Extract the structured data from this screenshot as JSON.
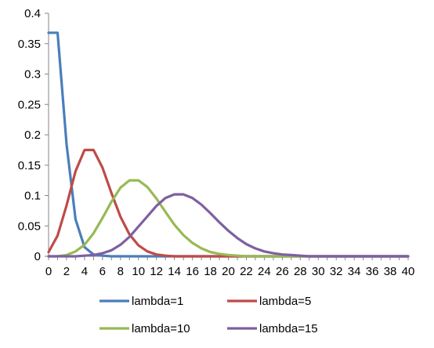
{
  "chart_data": {
    "type": "line",
    "title": "",
    "xlabel": "",
    "ylabel": "",
    "x": [
      0,
      1,
      2,
      3,
      4,
      5,
      6,
      7,
      8,
      9,
      10,
      11,
      12,
      13,
      14,
      15,
      16,
      17,
      18,
      19,
      20,
      21,
      22,
      23,
      24,
      25,
      26,
      27,
      28,
      29,
      30,
      31,
      32,
      33,
      34,
      35,
      36,
      37,
      38,
      39,
      40
    ],
    "x_tick_labels": [
      "0",
      "2",
      "4",
      "6",
      "8",
      "10",
      "12",
      "14",
      "16",
      "18",
      "20",
      "22",
      "24",
      "26",
      "28",
      "30",
      "32",
      "34",
      "36",
      "38",
      "40"
    ],
    "x_tick_values": [
      0,
      2,
      4,
      6,
      8,
      10,
      12,
      14,
      16,
      18,
      20,
      22,
      24,
      26,
      28,
      30,
      32,
      34,
      36,
      38,
      40
    ],
    "y_tick_labels": [
      "0",
      "0.05",
      "0.1",
      "0.15",
      "0.2",
      "0.25",
      "0.3",
      "0.35",
      "0.4"
    ],
    "y_tick_values": [
      0,
      0.05,
      0.1,
      0.15,
      0.2,
      0.25,
      0.3,
      0.35,
      0.4
    ],
    "xlim": [
      0,
      40
    ],
    "ylim": [
      0,
      0.4
    ],
    "grid": false,
    "legend_position": "bottom",
    "series": [
      {
        "name": "lambda=1",
        "color": "#4a7ebb",
        "values": [
          0.368,
          0.368,
          0.184,
          0.061,
          0.015,
          0.003,
          0.001,
          0,
          0,
          0,
          0,
          0,
          0,
          0,
          0,
          0,
          0,
          0,
          0,
          0,
          0,
          0,
          0,
          0,
          0,
          0,
          0,
          0,
          0,
          0,
          0,
          0,
          0,
          0,
          0,
          0,
          0,
          0,
          0,
          0,
          0
        ]
      },
      {
        "name": "lambda=5",
        "color": "#be4b48",
        "values": [
          0.007,
          0.034,
          0.084,
          0.14,
          0.175,
          0.175,
          0.146,
          0.104,
          0.065,
          0.036,
          0.018,
          0.008,
          0.003,
          0.001,
          0,
          0,
          0,
          0,
          0,
          0,
          0,
          0,
          0,
          0,
          0,
          0,
          0,
          0,
          0,
          0,
          0,
          0,
          0,
          0,
          0,
          0,
          0,
          0,
          0,
          0,
          0
        ]
      },
      {
        "name": "lambda=10",
        "color": "#98b954",
        "values": [
          0,
          0,
          0.002,
          0.008,
          0.019,
          0.038,
          0.063,
          0.09,
          0.113,
          0.125,
          0.125,
          0.114,
          0.095,
          0.073,
          0.052,
          0.035,
          0.022,
          0.013,
          0.007,
          0.004,
          0.002,
          0.001,
          0,
          0,
          0,
          0,
          0,
          0,
          0,
          0,
          0,
          0,
          0,
          0,
          0,
          0,
          0,
          0,
          0,
          0,
          0
        ]
      },
      {
        "name": "lambda=15",
        "color": "#7d60a0",
        "values": [
          0,
          0,
          0,
          0,
          0.001,
          0.002,
          0.005,
          0.01,
          0.019,
          0.032,
          0.049,
          0.066,
          0.083,
          0.096,
          0.102,
          0.102,
          0.096,
          0.085,
          0.071,
          0.056,
          0.042,
          0.03,
          0.02,
          0.013,
          0.008,
          0.005,
          0.003,
          0.002,
          0.001,
          0,
          0,
          0,
          0,
          0,
          0,
          0,
          0,
          0,
          0,
          0,
          0
        ]
      }
    ]
  }
}
